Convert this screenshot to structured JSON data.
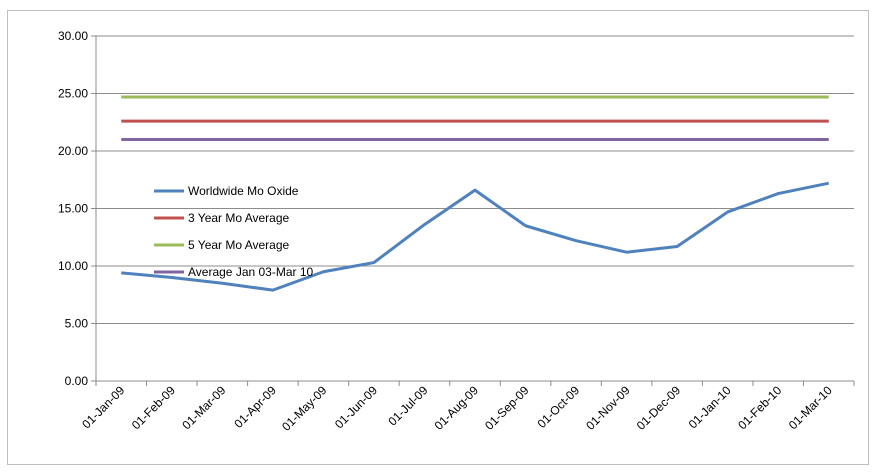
{
  "chart_data": {
    "type": "line",
    "title": "",
    "xlabel": "",
    "ylabel": "",
    "x": [
      "01-Jan-09",
      "01-Feb-09",
      "01-Mar-09",
      "01-Apr-09",
      "01-May-09",
      "01-Jun-09",
      "01-Jul-09",
      "01-Aug-09",
      "01-Sep-09",
      "01-Oct-09",
      "01-Nov-09",
      "01-Dec-09",
      "01-Jan-10",
      "01-Feb-10",
      "01-Mar-10"
    ],
    "ylim": [
      0,
      30
    ],
    "yticks": [
      "0.00",
      "5.00",
      "10.00",
      "15.00",
      "20.00",
      "25.00",
      "30.00"
    ],
    "grid": true,
    "legend_position": "left-middle",
    "series": [
      {
        "name": "Worldwide Mo Oxide",
        "color": "#4f81bd",
        "values": [
          9.4,
          9.0,
          8.5,
          7.9,
          9.5,
          10.3,
          13.6,
          16.6,
          13.5,
          12.2,
          11.2,
          11.7,
          14.7,
          16.3,
          17.2
        ]
      },
      {
        "name": "3 Year Mo Average",
        "color": "#c0504d",
        "values": [
          22.6,
          22.6,
          22.6,
          22.6,
          22.6,
          22.6,
          22.6,
          22.6,
          22.6,
          22.6,
          22.6,
          22.6,
          22.6,
          22.6,
          22.6
        ]
      },
      {
        "name": "5 Year Mo Average",
        "color": "#9bbb59",
        "values": [
          24.7,
          24.7,
          24.7,
          24.7,
          24.7,
          24.7,
          24.7,
          24.7,
          24.7,
          24.7,
          24.7,
          24.7,
          24.7,
          24.7,
          24.7
        ]
      },
      {
        "name": "Average Jan 03-Mar 10",
        "color": "#8064a2",
        "values": [
          21.0,
          21.0,
          21.0,
          21.0,
          21.0,
          21.0,
          21.0,
          21.0,
          21.0,
          21.0,
          21.0,
          21.0,
          21.0,
          21.0,
          21.0
        ]
      }
    ]
  }
}
